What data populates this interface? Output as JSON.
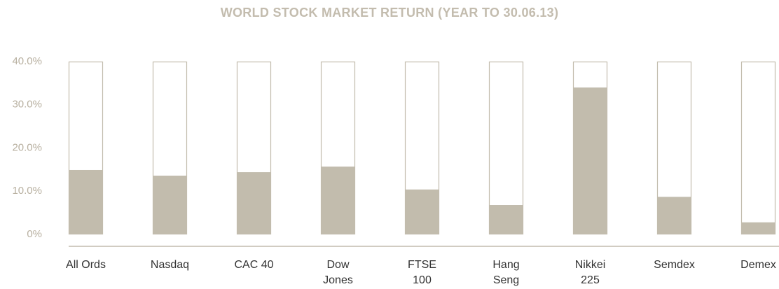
{
  "chart_data": {
    "type": "bar",
    "title": "WORLD STOCK MARKET RETURN (YEAR TO 30.06.13)",
    "categories": [
      "All Ords",
      "Nasdaq",
      "CAC 40",
      "Dow\nJones",
      "FTSE\n100",
      "Hang\nSeng",
      "Nikkei\n225",
      "Semdex",
      "Demex"
    ],
    "values": [
      14.9,
      13.6,
      14.4,
      15.7,
      10.4,
      6.8,
      34.0,
      8.7,
      2.8
    ],
    "color": "#c2bcad",
    "ylim": [
      0,
      40
    ],
    "yticks": [
      {
        "value": 0,
        "label": "0%"
      },
      {
        "value": 10,
        "label": "10.0%"
      },
      {
        "value": 20,
        "label": "20.0%"
      },
      {
        "value": 30,
        "label": "30.0%"
      },
      {
        "value": 40,
        "label": "40.0%"
      }
    ]
  }
}
